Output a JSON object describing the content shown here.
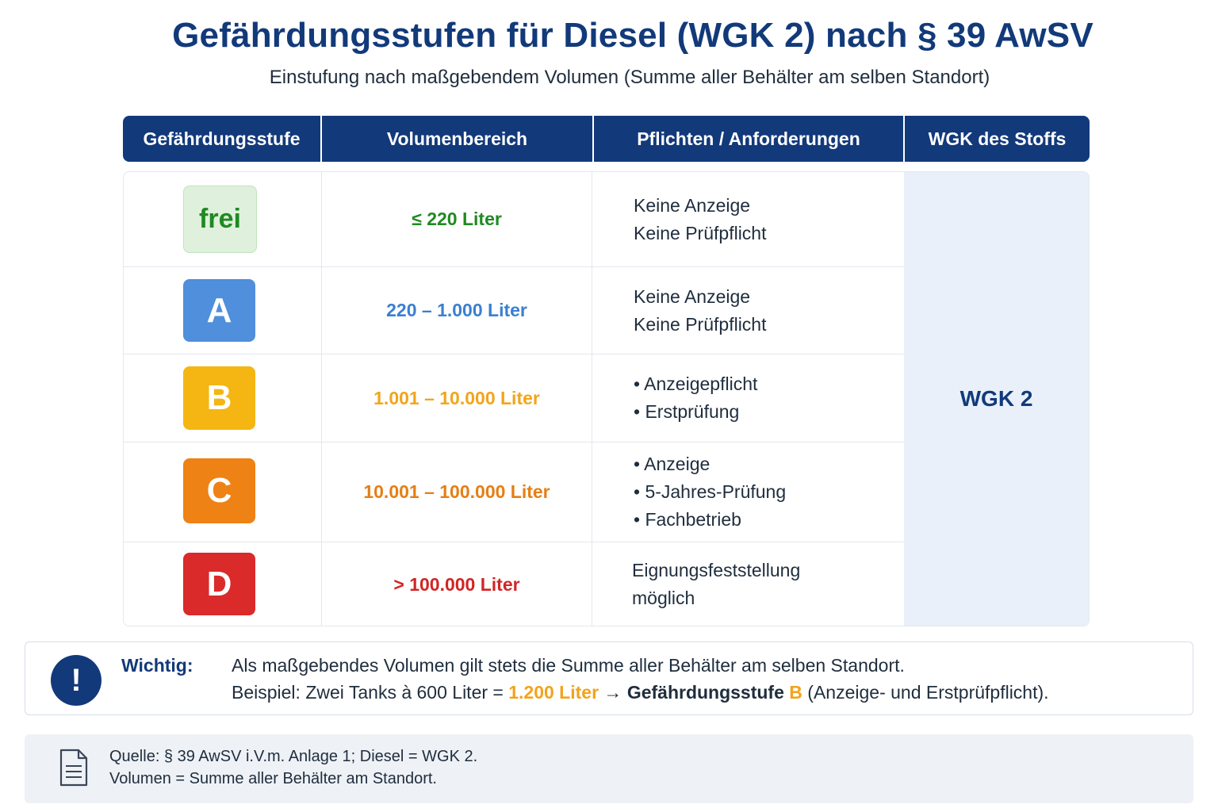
{
  "title": "Gefährdungsstufen für Diesel (WGK 2) nach § 39 AwSV",
  "subtitle": "Einstufung nach maßgebendem Volumen (Summe aller Behälter am selben Standort)",
  "headers": [
    "Gefährdungsstufe",
    "Volumenbereich",
    "Pflichten / Anforderungen",
    "WGK des Stoffs"
  ],
  "rows": [
    {
      "level": "frei",
      "volume": "≤ 220 Liter",
      "duties": [
        "Keine Anzeige",
        "Keine Prüfpflicht"
      ],
      "badge_bg": "#dff1dc",
      "badge_fg": "#1f8a22",
      "volume_color": "#1f8a22"
    },
    {
      "level": "A",
      "volume": "220 – 1.000 Liter",
      "duties": [
        "Keine Anzeige",
        "Keine Prüfpflicht"
      ],
      "badge_bg": "#4f8fdc",
      "badge_fg": "#ffffff",
      "volume_color": "#3a7fd0"
    },
    {
      "level": "B",
      "volume": "1.001 – 10.000 Liter",
      "duties": [
        "• Anzeigepflicht",
        "• Erstprüfung"
      ],
      "badge_bg": "#f5b613",
      "badge_fg": "#ffffff",
      "volume_color": "#f2a51a"
    },
    {
      "level": "C",
      "volume": "10.001 – 100.000 Liter",
      "duties": [
        "• Anzeige",
        "• 5-Jahres-Prüfung",
        "• Fachbetrieb"
      ],
      "badge_bg": "#ee8214",
      "badge_fg": "#ffffff",
      "volume_color": "#e57f14"
    },
    {
      "level": "D",
      "volume": "> 100.000 Liter",
      "duties": [
        "Eignungsfeststellung",
        "möglich"
      ],
      "badge_bg": "#da2a2a",
      "badge_fg": "#ffffff",
      "volume_color": "#d32424"
    }
  ],
  "wgk": "WGK 2",
  "notice": {
    "icon": "exclamation-icon",
    "label": "Wichtig:",
    "line1": "Als maßgebendes Volumen gilt stets die Summe aller Behälter am selben Standort.",
    "line2_prefix": "Beispiel: Zwei Tanks à 600 Liter = ",
    "line2_volume": "1.200 Liter",
    "line2_arrow": " → ",
    "line2_level_text": "Gefährdungsstufe ",
    "line2_level": "B",
    "line2_suffix": " (Anzeige- und Erstprüfpflicht)."
  },
  "source": {
    "icon": "document-icon",
    "line1": "Quelle: § 39 AwSV i.V.m. Anlage 1; Diesel = WGK 2.",
    "line2": "Volumen = Summe aller Behälter am Standort."
  }
}
